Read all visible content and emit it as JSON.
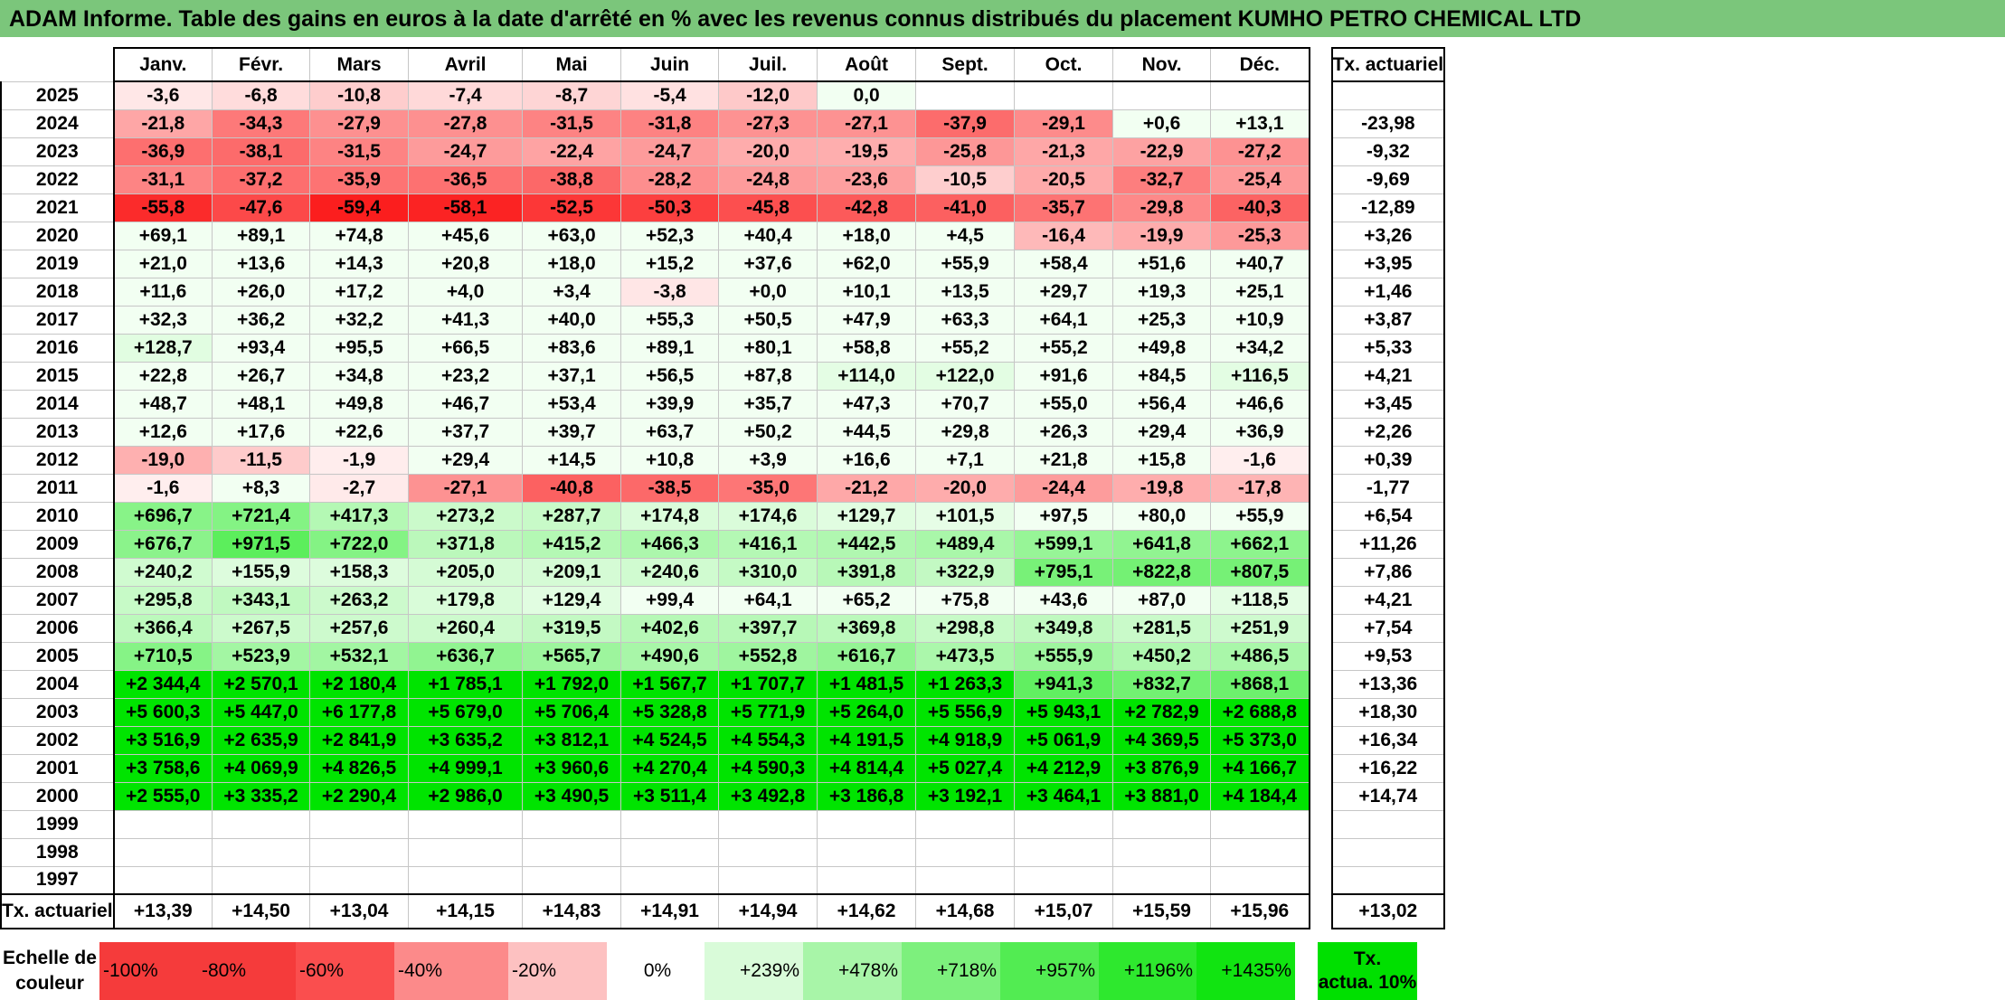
{
  "title": "ADAM Informe. Table des gains en euros à la date d'arrêté en % avec les revenus connus distribués du placement KUMHO PETRO CHEMICAL LTD",
  "months": [
    "Janv.",
    "Févr.",
    "Mars",
    "Avril",
    "Mai",
    "Juin",
    "Juil.",
    "Août",
    "Sept.",
    "Oct.",
    "Nov.",
    "Déc."
  ],
  "ta_header": "Tx. actuariel",
  "rows": [
    {
      "year": "2025",
      "vals": [
        "-3,6",
        "-6,8",
        "-10,8",
        "-7,4",
        "-8,7",
        "-5,4",
        "-12,0",
        "0,0",
        "",
        "",
        "",
        ""
      ],
      "ta": ""
    },
    {
      "year": "2024",
      "vals": [
        "-21,8",
        "-34,3",
        "-27,9",
        "-27,8",
        "-31,5",
        "-31,8",
        "-27,3",
        "-27,1",
        "-37,9",
        "-29,1",
        "+0,6",
        "+13,1"
      ],
      "ta": "-23,98"
    },
    {
      "year": "2023",
      "vals": [
        "-36,9",
        "-38,1",
        "-31,5",
        "-24,7",
        "-22,4",
        "-24,7",
        "-20,0",
        "-19,5",
        "-25,8",
        "-21,3",
        "-22,9",
        "-27,2"
      ],
      "ta": "-9,32"
    },
    {
      "year": "2022",
      "vals": [
        "-31,1",
        "-37,2",
        "-35,9",
        "-36,5",
        "-38,8",
        "-28,2",
        "-24,8",
        "-23,6",
        "-10,5",
        "-20,5",
        "-32,7",
        "-25,4"
      ],
      "ta": "-9,69"
    },
    {
      "year": "2021",
      "vals": [
        "-55,8",
        "-47,6",
        "-59,4",
        "-58,1",
        "-52,5",
        "-50,3",
        "-45,8",
        "-42,8",
        "-41,0",
        "-35,7",
        "-29,8",
        "-40,3"
      ],
      "ta": "-12,89"
    },
    {
      "year": "2020",
      "vals": [
        "+69,1",
        "+89,1",
        "+74,8",
        "+45,6",
        "+63,0",
        "+52,3",
        "+40,4",
        "+18,0",
        "+4,5",
        "-16,4",
        "-19,9",
        "-25,3"
      ],
      "ta": "+3,26"
    },
    {
      "year": "2019",
      "vals": [
        "+21,0",
        "+13,6",
        "+14,3",
        "+20,8",
        "+18,0",
        "+15,2",
        "+37,6",
        "+62,0",
        "+55,9",
        "+58,4",
        "+51,6",
        "+40,7"
      ],
      "ta": "+3,95"
    },
    {
      "year": "2018",
      "vals": [
        "+11,6",
        "+26,0",
        "+17,2",
        "+4,0",
        "+3,4",
        "-3,8",
        "+0,0",
        "+10,1",
        "+13,5",
        "+29,7",
        "+19,3",
        "+25,1"
      ],
      "ta": "+1,46"
    },
    {
      "year": "2017",
      "vals": [
        "+32,3",
        "+36,2",
        "+32,2",
        "+41,3",
        "+40,0",
        "+55,3",
        "+50,5",
        "+47,9",
        "+63,3",
        "+64,1",
        "+25,3",
        "+10,9"
      ],
      "ta": "+3,87"
    },
    {
      "year": "2016",
      "vals": [
        "+128,7",
        "+93,4",
        "+95,5",
        "+66,5",
        "+83,6",
        "+89,1",
        "+80,1",
        "+58,8",
        "+55,2",
        "+55,2",
        "+49,8",
        "+34,2"
      ],
      "ta": "+5,33"
    },
    {
      "year": "2015",
      "vals": [
        "+22,8",
        "+26,7",
        "+34,8",
        "+23,2",
        "+37,1",
        "+56,5",
        "+87,8",
        "+114,0",
        "+122,0",
        "+91,6",
        "+84,5",
        "+116,5"
      ],
      "ta": "+4,21"
    },
    {
      "year": "2014",
      "vals": [
        "+48,7",
        "+48,1",
        "+49,8",
        "+46,7",
        "+53,4",
        "+39,9",
        "+35,7",
        "+47,3",
        "+70,7",
        "+55,0",
        "+56,4",
        "+46,6"
      ],
      "ta": "+3,45"
    },
    {
      "year": "2013",
      "vals": [
        "+12,6",
        "+17,6",
        "+22,6",
        "+37,7",
        "+39,7",
        "+63,7",
        "+50,2",
        "+44,5",
        "+29,8",
        "+26,3",
        "+29,4",
        "+36,9"
      ],
      "ta": "+2,26"
    },
    {
      "year": "2012",
      "vals": [
        "-19,0",
        "-11,5",
        "-1,9",
        "+29,4",
        "+14,5",
        "+10,8",
        "+3,9",
        "+16,6",
        "+7,1",
        "+21,8",
        "+15,8",
        "-1,6"
      ],
      "ta": "+0,39"
    },
    {
      "year": "2011",
      "vals": [
        "-1,6",
        "+8,3",
        "-2,7",
        "-27,1",
        "-40,8",
        "-38,5",
        "-35,0",
        "-21,2",
        "-20,0",
        "-24,4",
        "-19,8",
        "-17,8"
      ],
      "ta": "-1,77"
    },
    {
      "year": "2010",
      "vals": [
        "+696,7",
        "+721,4",
        "+417,3",
        "+273,2",
        "+287,7",
        "+174,8",
        "+174,6",
        "+129,7",
        "+101,5",
        "+97,5",
        "+80,0",
        "+55,9"
      ],
      "ta": "+6,54"
    },
    {
      "year": "2009",
      "vals": [
        "+676,7",
        "+971,5",
        "+722,0",
        "+371,8",
        "+415,2",
        "+466,3",
        "+416,1",
        "+442,5",
        "+489,4",
        "+599,1",
        "+641,8",
        "+662,1"
      ],
      "ta": "+11,26"
    },
    {
      "year": "2008",
      "vals": [
        "+240,2",
        "+155,9",
        "+158,3",
        "+205,0",
        "+209,1",
        "+240,6",
        "+310,0",
        "+391,8",
        "+322,9",
        "+795,1",
        "+822,8",
        "+807,5"
      ],
      "ta": "+7,86"
    },
    {
      "year": "2007",
      "vals": [
        "+295,8",
        "+343,1",
        "+263,2",
        "+179,8",
        "+129,4",
        "+99,4",
        "+64,1",
        "+65,2",
        "+75,8",
        "+43,6",
        "+87,0",
        "+118,5"
      ],
      "ta": "+4,21"
    },
    {
      "year": "2006",
      "vals": [
        "+366,4",
        "+267,5",
        "+257,6",
        "+260,4",
        "+319,5",
        "+402,6",
        "+397,7",
        "+369,8",
        "+298,8",
        "+349,8",
        "+281,5",
        "+251,9"
      ],
      "ta": "+7,54"
    },
    {
      "year": "2005",
      "vals": [
        "+710,5",
        "+523,9",
        "+532,1",
        "+636,7",
        "+565,7",
        "+490,6",
        "+552,8",
        "+616,7",
        "+473,5",
        "+555,9",
        "+450,2",
        "+486,5"
      ],
      "ta": "+9,53"
    },
    {
      "year": "2004",
      "vals": [
        "+2 344,4",
        "+2 570,1",
        "+2 180,4",
        "+1 785,1",
        "+1 792,0",
        "+1 567,7",
        "+1 707,7",
        "+1 481,5",
        "+1 263,3",
        "+941,3",
        "+832,7",
        "+868,1"
      ],
      "ta": "+13,36"
    },
    {
      "year": "2003",
      "vals": [
        "+5 600,3",
        "+5 447,0",
        "+6 177,8",
        "+5 679,0",
        "+5 706,4",
        "+5 328,8",
        "+5 771,9",
        "+5 264,0",
        "+5 556,9",
        "+5 943,1",
        "+2 782,9",
        "+2 688,8"
      ],
      "ta": "+18,30"
    },
    {
      "year": "2002",
      "vals": [
        "+3 516,9",
        "+2 635,9",
        "+2 841,9",
        "+3 635,2",
        "+3 812,1",
        "+4 524,5",
        "+4 554,3",
        "+4 191,5",
        "+4 918,9",
        "+5 061,9",
        "+4 369,5",
        "+5 373,0"
      ],
      "ta": "+16,34"
    },
    {
      "year": "2001",
      "vals": [
        "+3 758,6",
        "+4 069,9",
        "+4 826,5",
        "+4 999,1",
        "+3 960,6",
        "+4 270,4",
        "+4 590,3",
        "+4 814,4",
        "+5 027,4",
        "+4 212,9",
        "+3 876,9",
        "+4 166,7"
      ],
      "ta": "+16,22"
    },
    {
      "year": "2000",
      "vals": [
        "+2 555,0",
        "+3 335,2",
        "+2 290,4",
        "+2 986,0",
        "+3 490,5",
        "+3 511,4",
        "+3 492,8",
        "+3 186,8",
        "+3 192,1",
        "+3 464,1",
        "+3 881,0",
        "+4 184,4"
      ],
      "ta": "+14,74"
    },
    {
      "year": "1999",
      "vals": [
        "",
        "",
        "",
        "",
        "",
        "",
        "",
        "",
        "",
        "",
        "",
        ""
      ],
      "ta": ""
    },
    {
      "year": "1998",
      "vals": [
        "",
        "",
        "",
        "",
        "",
        "",
        "",
        "",
        "",
        "",
        "",
        ""
      ],
      "ta": ""
    },
    {
      "year": "1997",
      "vals": [
        "",
        "",
        "",
        "",
        "",
        "",
        "",
        "",
        "",
        "",
        "",
        ""
      ],
      "ta": ""
    }
  ],
  "totals": {
    "label": "Tx. actuariel",
    "vals": [
      "+13,39",
      "+14,50",
      "+13,04",
      "+14,15",
      "+14,83",
      "+14,91",
      "+14,94",
      "+14,62",
      "+14,68",
      "+15,07",
      "+15,59",
      "+15,96"
    ],
    "ta": "+13,02"
  },
  "scale": {
    "label_line1": "Echelle de",
    "label_line2": "couleur",
    "steps": [
      {
        "label": "-100%",
        "color": "#f53b3b"
      },
      {
        "label": "-80%",
        "color": "#f53b3b"
      },
      {
        "label": "-60%",
        "color": "#fa4e4e"
      },
      {
        "label": "-40%",
        "color": "#fc8a8a"
      },
      {
        "label": "-20%",
        "color": "#fdc1c1"
      },
      {
        "label": "0%",
        "color": "#ffffff"
      },
      {
        "label": "+239%",
        "color": "#d9fbd9"
      },
      {
        "label": "+478%",
        "color": "#a8f5a8"
      },
      {
        "label": "+718%",
        "color": "#7df07d"
      },
      {
        "label": "+957%",
        "color": "#52ec52"
      },
      {
        "label": "+1196%",
        "color": "#2ee82e"
      },
      {
        "label": "+1435%",
        "color": "#11e411"
      }
    ],
    "tx_line1": "Tx.",
    "tx_line2": "actua. 10%",
    "tx_color": "#00e000"
  }
}
